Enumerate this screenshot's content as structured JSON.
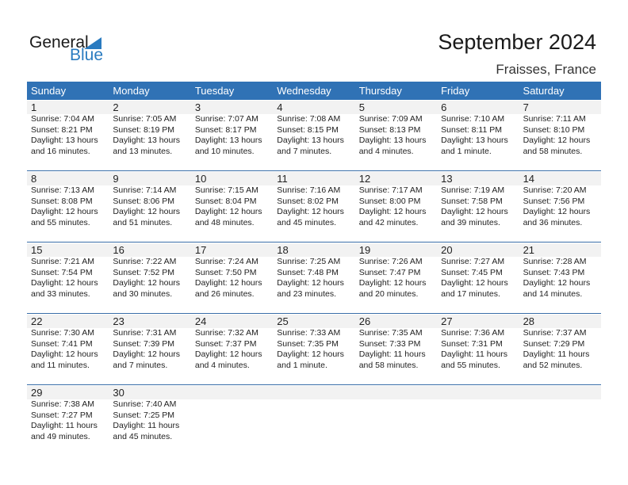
{
  "logo": {
    "general": "General",
    "blue": "Blue"
  },
  "title": "September 2024",
  "location": "Fraisses, France",
  "weekdays": [
    "Sunday",
    "Monday",
    "Tuesday",
    "Wednesday",
    "Thursday",
    "Friday",
    "Saturday"
  ],
  "first_weekday_index": 0,
  "days": [
    [
      "1",
      "Sunrise: 7:04 AM",
      "Sunset: 8:21 PM",
      "Daylight: 13 hours",
      "and 16 minutes."
    ],
    [
      "2",
      "Sunrise: 7:05 AM",
      "Sunset: 8:19 PM",
      "Daylight: 13 hours",
      "and 13 minutes."
    ],
    [
      "3",
      "Sunrise: 7:07 AM",
      "Sunset: 8:17 PM",
      "Daylight: 13 hours",
      "and 10 minutes."
    ],
    [
      "4",
      "Sunrise: 7:08 AM",
      "Sunset: 8:15 PM",
      "Daylight: 13 hours",
      "and 7 minutes."
    ],
    [
      "5",
      "Sunrise: 7:09 AM",
      "Sunset: 8:13 PM",
      "Daylight: 13 hours",
      "and 4 minutes."
    ],
    [
      "6",
      "Sunrise: 7:10 AM",
      "Sunset: 8:11 PM",
      "Daylight: 13 hours",
      "and 1 minute."
    ],
    [
      "7",
      "Sunrise: 7:11 AM",
      "Sunset: 8:10 PM",
      "Daylight: 12 hours",
      "and 58 minutes."
    ],
    [
      "8",
      "Sunrise: 7:13 AM",
      "Sunset: 8:08 PM",
      "Daylight: 12 hours",
      "and 55 minutes."
    ],
    [
      "9",
      "Sunrise: 7:14 AM",
      "Sunset: 8:06 PM",
      "Daylight: 12 hours",
      "and 51 minutes."
    ],
    [
      "10",
      "Sunrise: 7:15 AM",
      "Sunset: 8:04 PM",
      "Daylight: 12 hours",
      "and 48 minutes."
    ],
    [
      "11",
      "Sunrise: 7:16 AM",
      "Sunset: 8:02 PM",
      "Daylight: 12 hours",
      "and 45 minutes."
    ],
    [
      "12",
      "Sunrise: 7:17 AM",
      "Sunset: 8:00 PM",
      "Daylight: 12 hours",
      "and 42 minutes."
    ],
    [
      "13",
      "Sunrise: 7:19 AM",
      "Sunset: 7:58 PM",
      "Daylight: 12 hours",
      "and 39 minutes."
    ],
    [
      "14",
      "Sunrise: 7:20 AM",
      "Sunset: 7:56 PM",
      "Daylight: 12 hours",
      "and 36 minutes."
    ],
    [
      "15",
      "Sunrise: 7:21 AM",
      "Sunset: 7:54 PM",
      "Daylight: 12 hours",
      "and 33 minutes."
    ],
    [
      "16",
      "Sunrise: 7:22 AM",
      "Sunset: 7:52 PM",
      "Daylight: 12 hours",
      "and 30 minutes."
    ],
    [
      "17",
      "Sunrise: 7:24 AM",
      "Sunset: 7:50 PM",
      "Daylight: 12 hours",
      "and 26 minutes."
    ],
    [
      "18",
      "Sunrise: 7:25 AM",
      "Sunset: 7:48 PM",
      "Daylight: 12 hours",
      "and 23 minutes."
    ],
    [
      "19",
      "Sunrise: 7:26 AM",
      "Sunset: 7:47 PM",
      "Daylight: 12 hours",
      "and 20 minutes."
    ],
    [
      "20",
      "Sunrise: 7:27 AM",
      "Sunset: 7:45 PM",
      "Daylight: 12 hours",
      "and 17 minutes."
    ],
    [
      "21",
      "Sunrise: 7:28 AM",
      "Sunset: 7:43 PM",
      "Daylight: 12 hours",
      "and 14 minutes."
    ],
    [
      "22",
      "Sunrise: 7:30 AM",
      "Sunset: 7:41 PM",
      "Daylight: 12 hours",
      "and 11 minutes."
    ],
    [
      "23",
      "Sunrise: 7:31 AM",
      "Sunset: 7:39 PM",
      "Daylight: 12 hours",
      "and 7 minutes."
    ],
    [
      "24",
      "Sunrise: 7:32 AM",
      "Sunset: 7:37 PM",
      "Daylight: 12 hours",
      "and 4 minutes."
    ],
    [
      "25",
      "Sunrise: 7:33 AM",
      "Sunset: 7:35 PM",
      "Daylight: 12 hours",
      "and 1 minute."
    ],
    [
      "26",
      "Sunrise: 7:35 AM",
      "Sunset: 7:33 PM",
      "Daylight: 11 hours",
      "and 58 minutes."
    ],
    [
      "27",
      "Sunrise: 7:36 AM",
      "Sunset: 7:31 PM",
      "Daylight: 11 hours",
      "and 55 minutes."
    ],
    [
      "28",
      "Sunrise: 7:37 AM",
      "Sunset: 7:29 PM",
      "Daylight: 11 hours",
      "and 52 minutes."
    ],
    [
      "29",
      "Sunrise: 7:38 AM",
      "Sunset: 7:27 PM",
      "Daylight: 11 hours",
      "and 49 minutes."
    ],
    [
      "30",
      "Sunrise: 7:40 AM",
      "Sunset: 7:25 PM",
      "Daylight: 11 hours",
      "and 45 minutes."
    ]
  ],
  "colors": {
    "header": "#3072b5",
    "brand_blue": "#2a7bc0",
    "day_band": "#f2f2f2"
  }
}
